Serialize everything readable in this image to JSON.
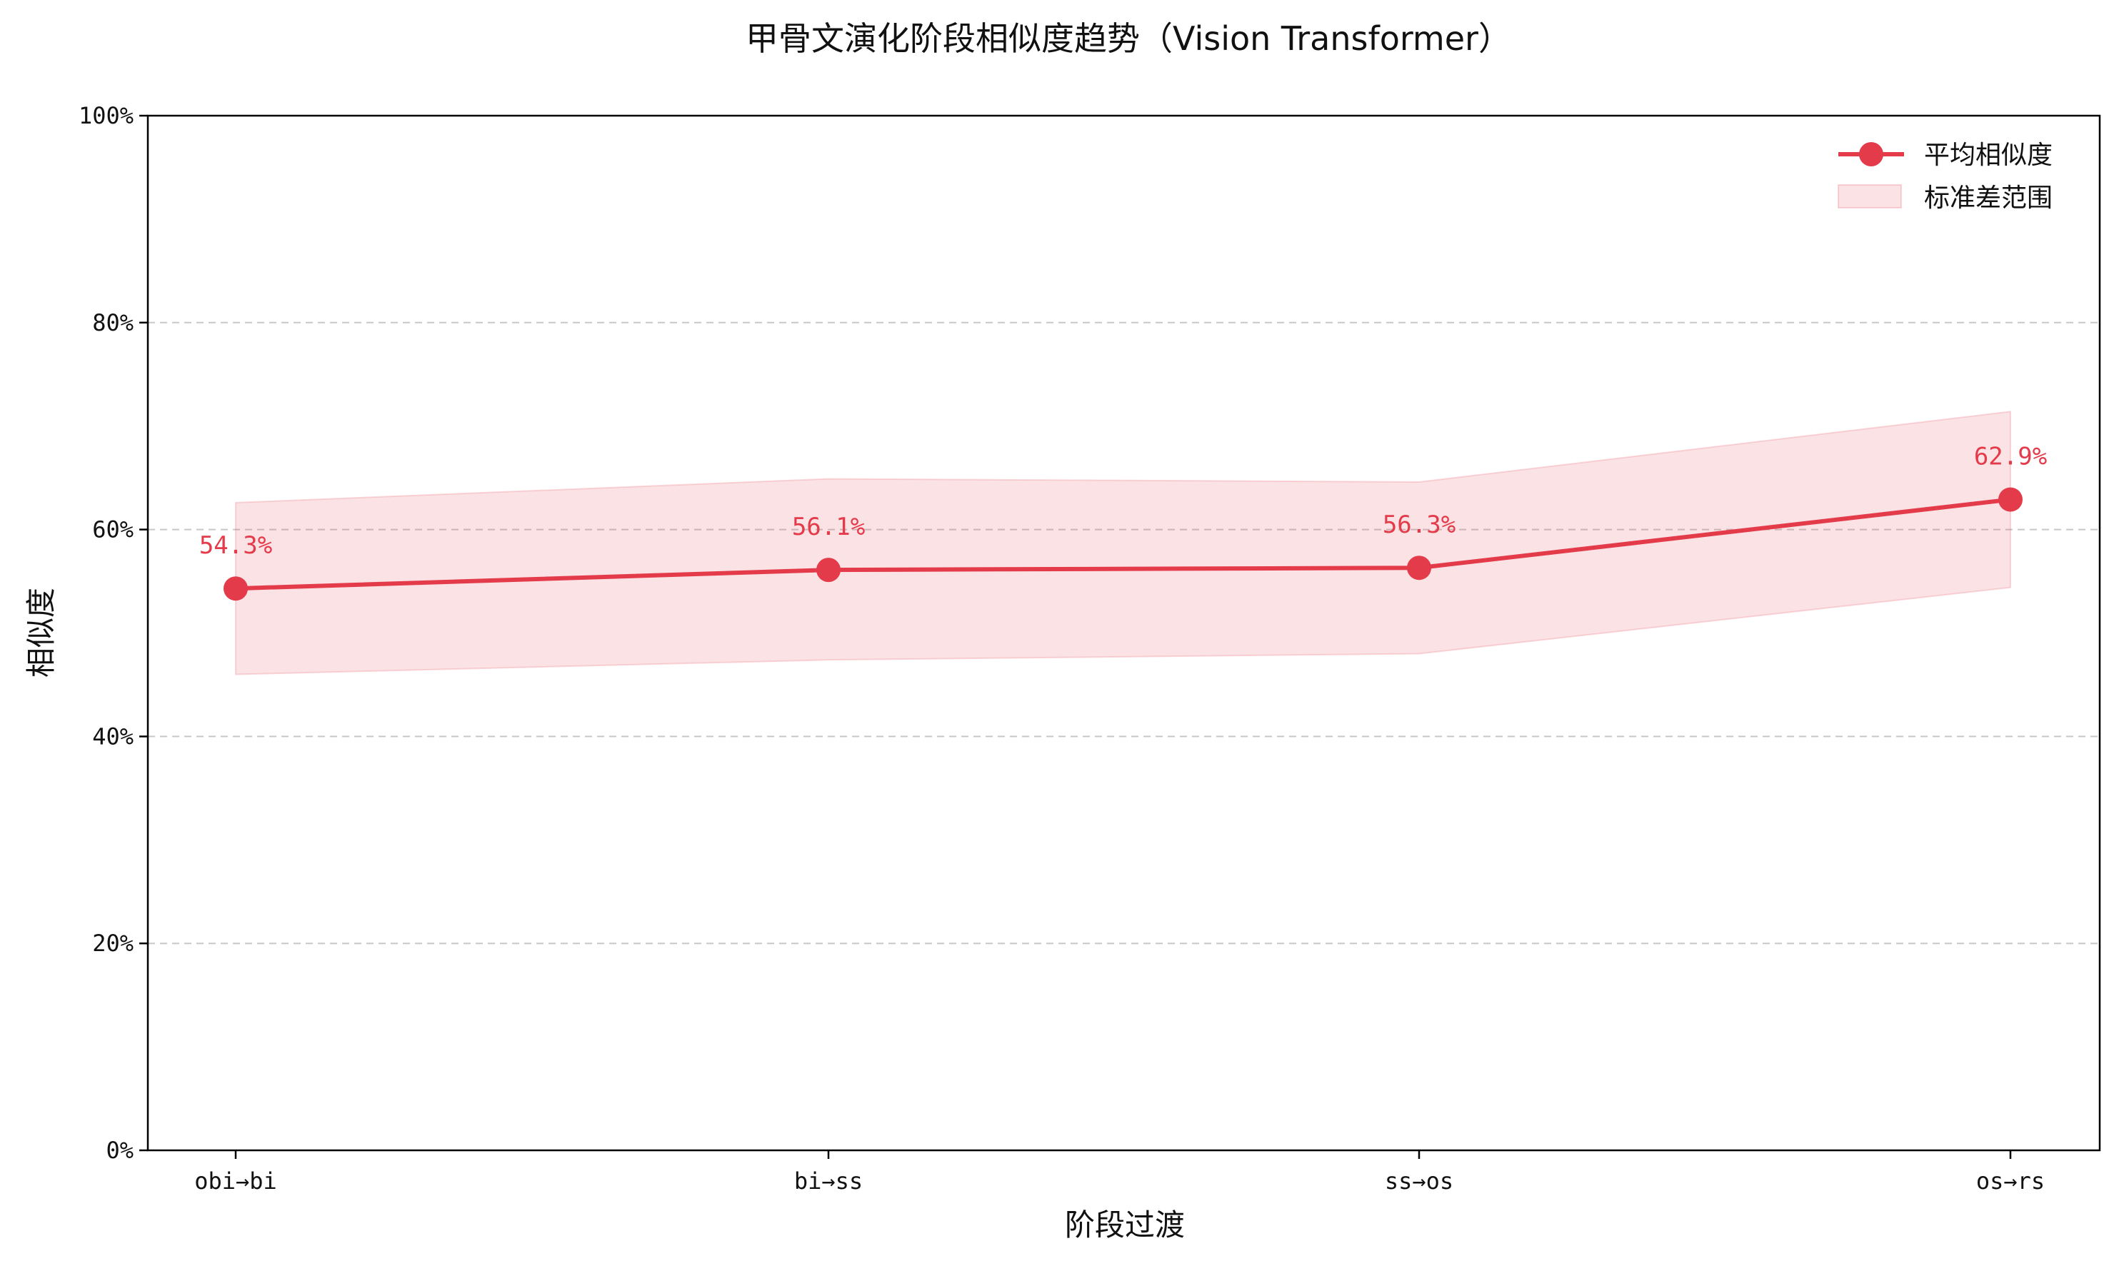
{
  "chart_data": {
    "type": "line",
    "title": "甲骨文演化阶段相似度趋势（Vision Transformer）",
    "xlabel": "阶段过渡",
    "ylabel": "相似度",
    "categories": [
      "obi→bi",
      "bi→ss",
      "ss→os",
      "os→rs"
    ],
    "series": [
      {
        "name": "平均相似度",
        "values": [
          54.3,
          56.1,
          56.3,
          62.9
        ],
        "labels": [
          "54.3%",
          "56.1%",
          "56.3%",
          "62.9%"
        ],
        "color": "#e43b4b"
      }
    ],
    "band": {
      "name": "标准差范围",
      "upper": [
        62.6,
        64.9,
        64.6,
        71.4
      ],
      "lower": [
        46.0,
        47.4,
        48.0,
        54.4
      ],
      "color": "#e43b4b"
    },
    "ylim": [
      0,
      100
    ],
    "yticks": [
      0,
      20,
      40,
      60,
      80,
      100
    ],
    "ytick_labels": [
      "0%",
      "20%",
      "40%",
      "60%",
      "80%",
      "100%"
    ],
    "grid": "horizontal dashed",
    "legend_position": "top-right"
  }
}
